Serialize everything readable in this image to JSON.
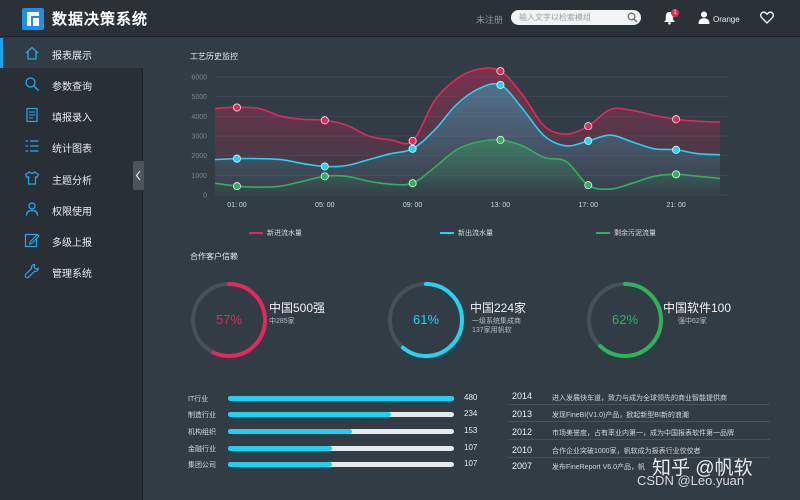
{
  "header": {
    "app_title": "数据决策系统",
    "unregistered": "未注册",
    "search_placeholder": "输入文字以检索模组",
    "notification_count": "1",
    "user_name": "Orange"
  },
  "sidebar": {
    "items": [
      {
        "label": "报表展示",
        "icon": "home-icon",
        "active": true
      },
      {
        "label": "参数查询",
        "icon": "search-icon"
      },
      {
        "label": "填报录入",
        "icon": "form-icon"
      },
      {
        "label": "统计图表",
        "icon": "list-icon"
      },
      {
        "label": "主题分析",
        "icon": "shirt-icon"
      },
      {
        "label": "权限使用",
        "icon": "user-icon"
      },
      {
        "label": "多级上报",
        "icon": "edit-icon"
      },
      {
        "label": "管理系统",
        "icon": "wrench-icon"
      }
    ]
  },
  "process_section": {
    "title": "工艺历史监控"
  },
  "chart_data": {
    "type": "area",
    "x": [
      "00:00",
      "01:00",
      "02:00",
      "03:00",
      "04:00",
      "05:00",
      "06:00",
      "07:00",
      "08:00",
      "09:00",
      "10:00",
      "11:00",
      "12:00",
      "13:00",
      "14:00",
      "15:00",
      "16:00",
      "17:00",
      "18:00",
      "19:00",
      "20:00",
      "21:00",
      "22:00",
      "23:00"
    ],
    "x_tick_labels": [
      "01: 00",
      "05: 00",
      "09: 00",
      "13: 00",
      "17: 00",
      "21: 00"
    ],
    "x_tick_indices": [
      1,
      5,
      9,
      13,
      17,
      21
    ],
    "y_ticks": [
      0,
      1000,
      2000,
      3000,
      4000,
      5000,
      6000
    ],
    "ylim": [
      0,
      6000
    ],
    "series": [
      {
        "name": "新进流水量",
        "color": "#e8265a",
        "markers": [
          1,
          5,
          9,
          13,
          17,
          21
        ],
        "values": [
          4400,
          4450,
          4400,
          4000,
          3850,
          3800,
          3550,
          3000,
          2800,
          2750,
          4800,
          5900,
          6400,
          6300,
          5100,
          3500,
          3100,
          3500,
          4350,
          4300,
          4050,
          3850,
          3750,
          3700
        ]
      },
      {
        "name": "新出流水量",
        "color": "#1dd6f5",
        "markers": [
          1,
          5,
          9,
          13,
          17,
          21
        ],
        "values": [
          1800,
          1850,
          1850,
          1800,
          1600,
          1450,
          1500,
          1800,
          2100,
          2350,
          3300,
          4600,
          5400,
          5600,
          4400,
          3000,
          2500,
          2750,
          3050,
          2700,
          2350,
          2300,
          2100,
          2050
        ]
      },
      {
        "name": "剩余污泥流量",
        "color": "#2fb35a",
        "markers": [
          1,
          5,
          9,
          13,
          17,
          21
        ],
        "values": [
          600,
          450,
          400,
          450,
          700,
          950,
          950,
          700,
          550,
          600,
          1400,
          2300,
          2700,
          2800,
          2500,
          1900,
          1700,
          500,
          300,
          600,
          950,
          1050,
          950,
          850
        ]
      }
    ]
  },
  "partners_section": {
    "title": "合作客户信赖",
    "rings": [
      {
        "percent": "57%",
        "fraction": 0.57,
        "color": "#e8265a",
        "title": "中国500强",
        "sub": [
          "中285家"
        ]
      },
      {
        "percent": "61%",
        "fraction": 0.61,
        "color": "#1dd6f5",
        "title": "中国224家",
        "sub": [
          "一级系统集成商",
          "137家用帆软"
        ]
      },
      {
        "percent": "62%",
        "fraction": 0.62,
        "color": "#2fb35a",
        "title": "中国软件100",
        "sub": [
          "强中62家"
        ]
      }
    ]
  },
  "industry_bars": [
    {
      "label": "IT行业",
      "value": "480",
      "fraction": 1.0
    },
    {
      "label": "制造行业",
      "value": "234",
      "fraction": 0.72
    },
    {
      "label": "机构组织",
      "value": "153",
      "fraction": 0.55
    },
    {
      "label": "金融行业",
      "value": "107",
      "fraction": 0.46
    },
    {
      "label": "集团公司",
      "value": "107",
      "fraction": 0.46
    }
  ],
  "timeline": [
    {
      "year": "2014",
      "text": "进入发展快车道，致力与成为全球领先的商业智能提供商"
    },
    {
      "year": "2013",
      "text": "发现FineBI(V1.0)产品，掀起新型BI新的浪潮"
    },
    {
      "year": "2012",
      "text": "市场美誉度，占有率业内第一，成为中国报表软件第一品牌"
    },
    {
      "year": "2010",
      "text": "合作企业突破1000家，帆软成为报表行业佼佼者"
    },
    {
      "year": "2007",
      "text": "发布FineReport V6.0产品，帆"
    }
  ],
  "watermark": {
    "text": "知乎 @帆软",
    "csdn": "CSDN @Leo.yuan"
  }
}
